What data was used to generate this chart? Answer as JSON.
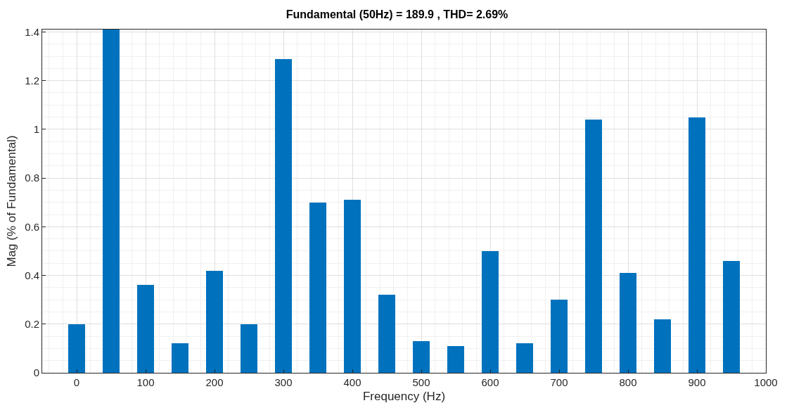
{
  "chart_data": {
    "type": "bar",
    "title": "Fundamental (50Hz) = 189.9 , THD= 2.69%",
    "xlabel": "Frequency (Hz)",
    "ylabel": "Mag (% of Fundamental)",
    "x": [
      0,
      50,
      100,
      150,
      200,
      250,
      300,
      350,
      400,
      450,
      500,
      550,
      600,
      650,
      700,
      750,
      800,
      850,
      900,
      950
    ],
    "values": [
      0.2,
      1.41,
      0.36,
      0.12,
      0.42,
      0.2,
      1.29,
      0.7,
      0.71,
      0.32,
      0.13,
      0.11,
      0.5,
      0.12,
      0.3,
      1.04,
      0.41,
      0.22,
      1.05,
      0.46
    ],
    "color": "#0072bd",
    "xlim": [
      -50,
      1000
    ],
    "xticks": [
      0,
      100,
      200,
      300,
      400,
      500,
      600,
      700,
      800,
      900,
      1000
    ],
    "ylim": [
      0,
      1.41
    ],
    "yticks": [
      0,
      0.2,
      0.4,
      0.6,
      0.8,
      1,
      1.2,
      1.4
    ],
    "grid": true
  }
}
